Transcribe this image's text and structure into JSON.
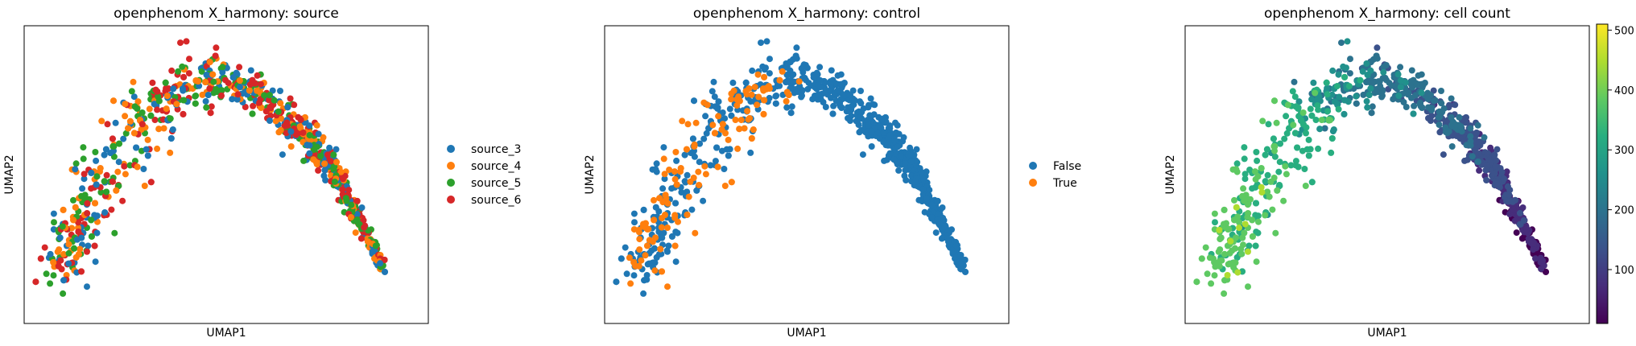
{
  "chart_data": [
    {
      "type": "scatter",
      "title": "openphenom X_harmony: source",
      "xlabel": "UMAP1",
      "ylabel": "UMAP2",
      "grid": false,
      "axis_ticks": false,
      "legend": {
        "placement": "right-outside",
        "entries": [
          {
            "label": "source_3",
            "color": "#1f77b4"
          },
          {
            "label": "source_4",
            "color": "#ff7f0e"
          },
          {
            "label": "source_5",
            "color": "#2ca02c"
          },
          {
            "label": "source_6",
            "color": "#d62728"
          }
        ]
      },
      "coloring": "categorical"
    },
    {
      "type": "scatter",
      "title": "openphenom X_harmony: control",
      "xlabel": "UMAP1",
      "ylabel": "UMAP2",
      "grid": false,
      "axis_ticks": false,
      "legend": {
        "placement": "right-outside",
        "entries": [
          {
            "label": "False",
            "color": "#1f77b4"
          },
          {
            "label": "True",
            "color": "#ff7f0e"
          }
        ]
      },
      "coloring": "categorical"
    },
    {
      "type": "scatter",
      "title": "openphenom X_harmony: cell count",
      "xlabel": "UMAP1",
      "ylabel": "UMAP2",
      "grid": false,
      "axis_ticks": false,
      "coloring": "continuous",
      "colorbar": {
        "colormap": "viridis",
        "range": [
          10,
          510
        ],
        "ticks": [
          "100",
          "200",
          "300",
          "400",
          "500"
        ],
        "tick_values": [
          100,
          200,
          300,
          400,
          500
        ]
      }
    }
  ]
}
